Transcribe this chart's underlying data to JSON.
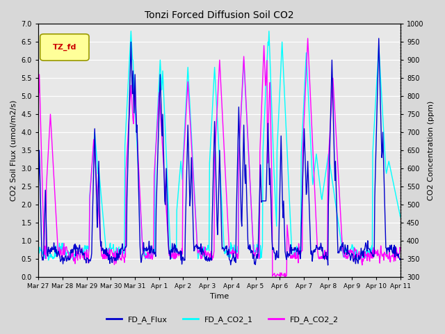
{
  "title": "Tonzi Forced Diffusion Soil CO2",
  "xlabel": "Time",
  "ylabel_left": "CO2 Soil Flux (umol/m2/s)",
  "ylabel_right": "CO2 Concentration (ppm)",
  "ylim_left": [
    0.0,
    7.0
  ],
  "ylim_right": [
    300,
    1000
  ],
  "tag_text": "TZ_fd",
  "tag_bg": "#FFFF99",
  "tag_border": "#999900",
  "tag_text_color": "#CC0000",
  "flux_color": "#0000CC",
  "co2_1_color": "#00FFFF",
  "co2_2_color": "#FF00FF",
  "flux_lw": 1.0,
  "co2_lw": 1.0,
  "fig_bg": "#D8D8D8",
  "plot_bg": "#E8E8E8",
  "grid_color": "#FFFFFF",
  "tick_labels": [
    "Mar 27",
    "Mar 28",
    "Mar 29",
    "Mar 30",
    "Mar 31",
    "Apr 1",
    "Apr 2",
    "Apr 3",
    "Apr 4",
    "Apr 5",
    "Apr 6",
    "Apr 7",
    "Apr 8",
    "Apr 9",
    "Apr 10",
    "Apr 11"
  ],
  "legend_labels": [
    "FD_A_Flux",
    "FD_A_CO2_1",
    "FD_A_CO2_2"
  ],
  "n_days": 15,
  "pts_per_day": 48
}
